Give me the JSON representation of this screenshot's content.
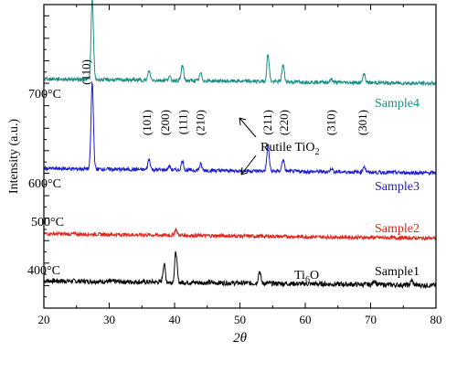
{
  "chart_data": {
    "type": "line",
    "title": "",
    "xlabel": "2θ",
    "ylabel": "Intensity (a.u.)",
    "xlim": [
      20,
      80
    ],
    "x_ticks": [
      20,
      30,
      40,
      50,
      60,
      70,
      80
    ],
    "y_ticks_visible": false,
    "grid": false,
    "series": [
      {
        "name": "Sample1",
        "temperature": "400°C",
        "color": "#000000",
        "baseline": 0.09,
        "noise": 0.008,
        "peaks": [
          {
            "x": 38.4,
            "h": 0.06
          },
          {
            "x": 40.2,
            "h": 0.1
          },
          {
            "x": 53.0,
            "h": 0.04
          },
          {
            "x": 70.6,
            "h": 0.015
          },
          {
            "x": 76.3,
            "h": 0.015
          }
        ]
      },
      {
        "name": "Sample2",
        "temperature": "500°C",
        "color": "#e8201a",
        "baseline": 0.245,
        "noise": 0.006,
        "peaks": [
          {
            "x": 40.2,
            "h": 0.02
          }
        ]
      },
      {
        "name": "Sample3",
        "temperature": "600°C",
        "color": "#1b1bd0",
        "baseline": 0.46,
        "noise": 0.006,
        "peaks": [
          {
            "x": 27.4,
            "h": 0.285
          },
          {
            "x": 36.1,
            "h": 0.035
          },
          {
            "x": 39.2,
            "h": 0.012
          },
          {
            "x": 41.2,
            "h": 0.03
          },
          {
            "x": 44.0,
            "h": 0.02
          },
          {
            "x": 54.3,
            "h": 0.085
          },
          {
            "x": 56.6,
            "h": 0.04
          },
          {
            "x": 64.0,
            "h": 0.012
          },
          {
            "x": 69.0,
            "h": 0.02
          }
        ]
      },
      {
        "name": "Sample4",
        "temperature": "700°C",
        "color": "#1a8f86",
        "baseline": 0.755,
        "noise": 0.006,
        "peaks": [
          {
            "x": 27.4,
            "h": 0.265
          },
          {
            "x": 36.1,
            "h": 0.03
          },
          {
            "x": 39.2,
            "h": 0.012
          },
          {
            "x": 41.2,
            "h": 0.05
          },
          {
            "x": 44.0,
            "h": 0.025
          },
          {
            "x": 54.3,
            "h": 0.09
          },
          {
            "x": 56.6,
            "h": 0.055
          },
          {
            "x": 64.0,
            "h": 0.01
          },
          {
            "x": 69.0,
            "h": 0.03
          }
        ]
      }
    ],
    "peak_labels": [
      {
        "text": "(110)",
        "x": 26.5
      },
      {
        "text": "(101)",
        "x": 35.8
      },
      {
        "text": "(200)",
        "x": 38.6
      },
      {
        "text": "(111)",
        "x": 41.3
      },
      {
        "text": "(210)",
        "x": 44.0
      },
      {
        "text": "(211)",
        "x": 54.3
      },
      {
        "text": "(220)",
        "x": 56.8
      },
      {
        "text": "(310)",
        "x": 64.0
      },
      {
        "text": "(301)",
        "x": 68.8
      }
    ],
    "annotations": {
      "rutile_label": "Rutile TiO",
      "rutile_subscript": "2",
      "ti6o_label": "Ti",
      "ti6o_subscript": "6",
      "ti6o_suffix": "O"
    }
  }
}
